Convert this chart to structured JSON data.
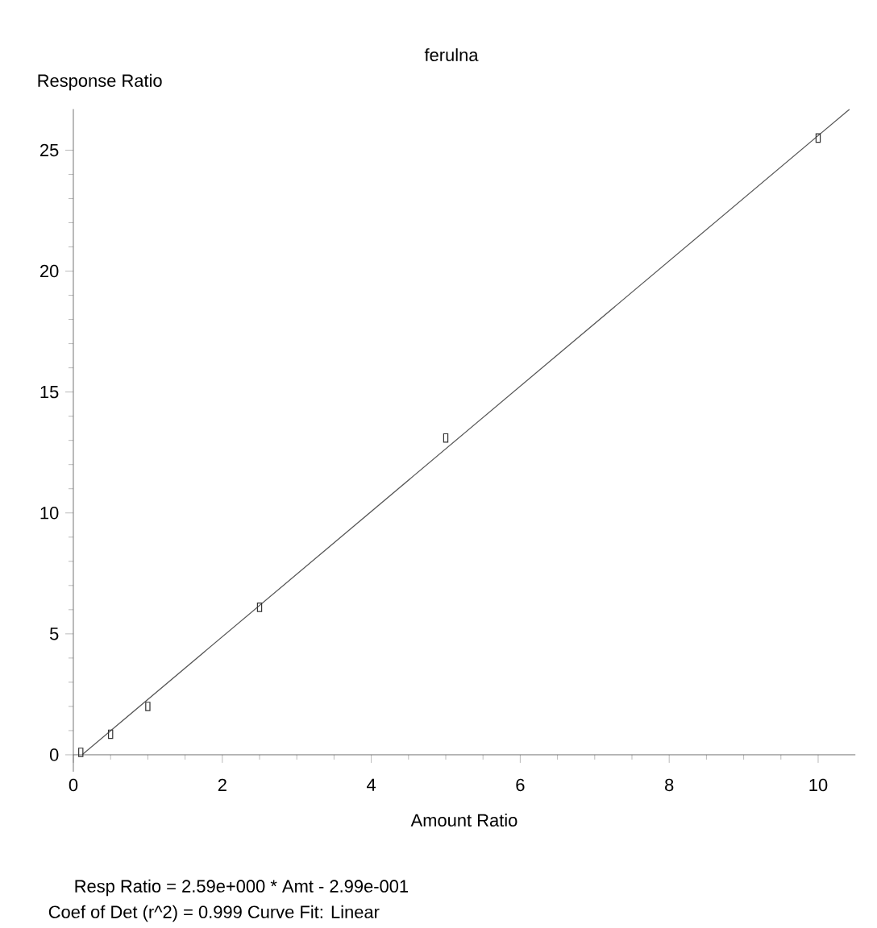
{
  "chart_data": {
    "type": "scatter",
    "title": "ferulna",
    "xlabel": "Amount Ratio",
    "ylabel": "Response Ratio",
    "series": [
      {
        "color": "#333333",
        "marker": "square",
        "x": [
          0.1,
          0.5,
          1,
          2.5,
          5,
          10
        ],
        "values": [
          0.1,
          0.85,
          2.0,
          6.1,
          13.1,
          25.5
        ]
      },
      {
        "type": "line",
        "color": "#555555",
        "marker": "none",
        "line_style": "solid",
        "x": [
          0.12,
          10.42
        ],
        "values": [
          0.01,
          26.69
        ]
      }
    ],
    "xlim": [
      0,
      10.5
    ],
    "ylim": [
      -0.7,
      26.7
    ],
    "xticks": [
      0,
      2,
      4,
      6,
      8,
      10
    ],
    "yticks": [
      0,
      5,
      10,
      15,
      20,
      25
    ],
    "annotations": [
      "Resp Ratio = 2.59e+000 * Amt - 2.99e-001",
      "Coef of Det (r^2) = 0.999   Curve Fit: Linear"
    ]
  }
}
